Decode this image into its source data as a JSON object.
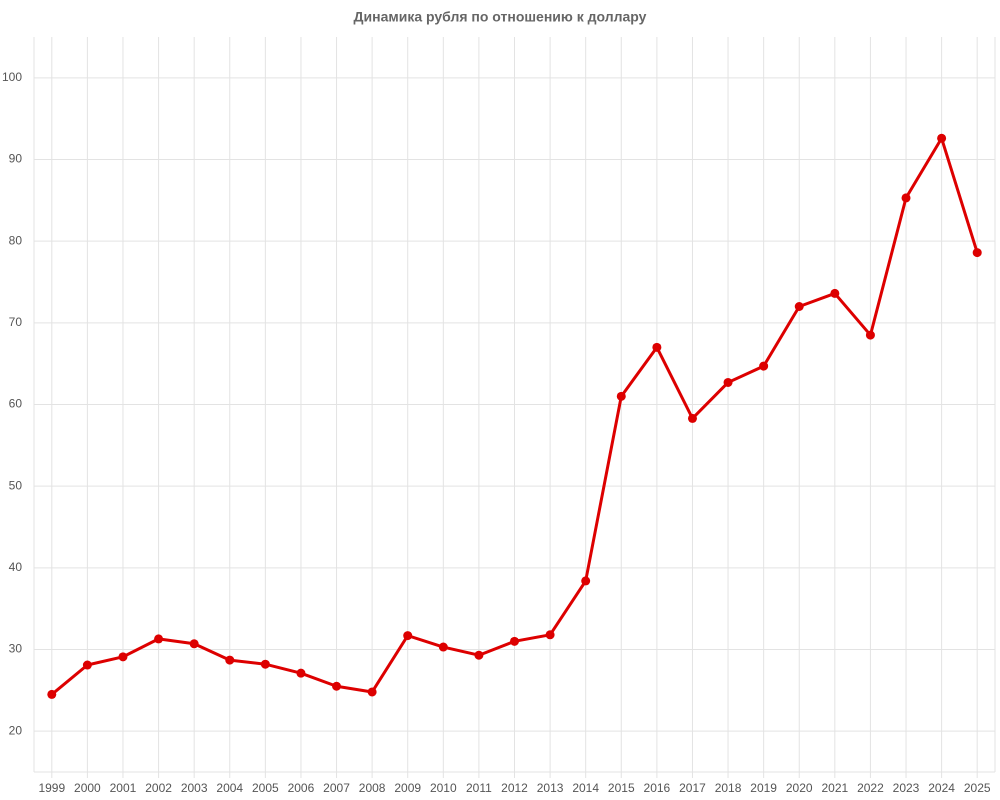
{
  "chart_data": {
    "type": "line",
    "title": "Динамика рубля по отношению к доллару",
    "categories": [
      "1999",
      "2000",
      "2001",
      "2002",
      "2003",
      "2004",
      "2005",
      "2006",
      "2007",
      "2008",
      "2009",
      "2010",
      "2011",
      "2012",
      "2013",
      "2014",
      "2015",
      "2016",
      "2017",
      "2018",
      "2019",
      "2020",
      "2021",
      "2022",
      "2023",
      "2024",
      "2025"
    ],
    "values": [
      24.5,
      28.1,
      29.1,
      31.3,
      30.7,
      28.7,
      28.2,
      27.1,
      25.5,
      24.8,
      31.7,
      30.3,
      29.3,
      31.0,
      31.8,
      38.4,
      61.0,
      67.0,
      58.3,
      62.7,
      64.7,
      72.0,
      73.6,
      68.5,
      85.3,
      92.6,
      78.6
    ],
    "color": "#dd0000",
    "ylim": [
      15,
      105
    ],
    "yticks": [
      20,
      30,
      40,
      50,
      60,
      70,
      80,
      90,
      100
    ],
    "grid": true
  }
}
